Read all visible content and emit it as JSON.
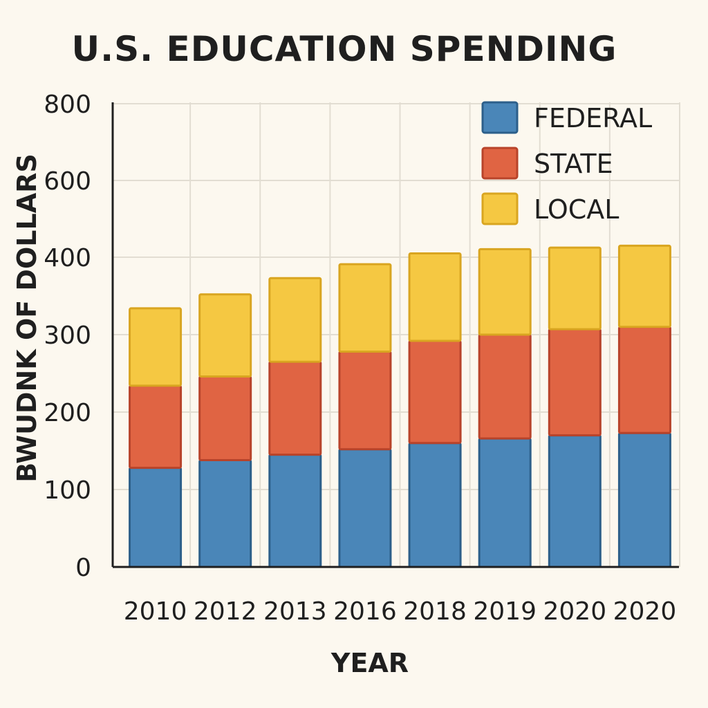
{
  "colors": {
    "federal": "#4a86b8",
    "federal_edge": "#2c5f8a",
    "state": "#e06443",
    "state_edge": "#b8432a",
    "local": "#f5c842",
    "local_edge": "#d9a520"
  },
  "chart_data": {
    "type": "bar",
    "stacked": true,
    "title": "U.S. EDUCATION SPENDING",
    "xlabel": "YEAR",
    "ylabel": "BWUDNK OF DOLLARS",
    "categories": [
      "2010",
      "2012",
      "2013",
      "2016",
      "2018",
      "2019",
      "2020",
      "2020"
    ],
    "series": [
      {
        "name": "FEDERAL",
        "values": [
          128,
          138,
          145,
          152,
          160,
          166,
          170,
          173
        ]
      },
      {
        "name": "STATE",
        "values": [
          106,
          108,
          120,
          126,
          132,
          134,
          137,
          137
        ]
      },
      {
        "name": "LOCAL",
        "values": [
          100,
          106,
          108,
          113,
          118,
          121,
          118,
          120
        ]
      }
    ],
    "yticks": [
      "0",
      "100",
      "200",
      "300",
      "400",
      "600",
      "800"
    ],
    "grid": true,
    "legend": "top-right"
  }
}
